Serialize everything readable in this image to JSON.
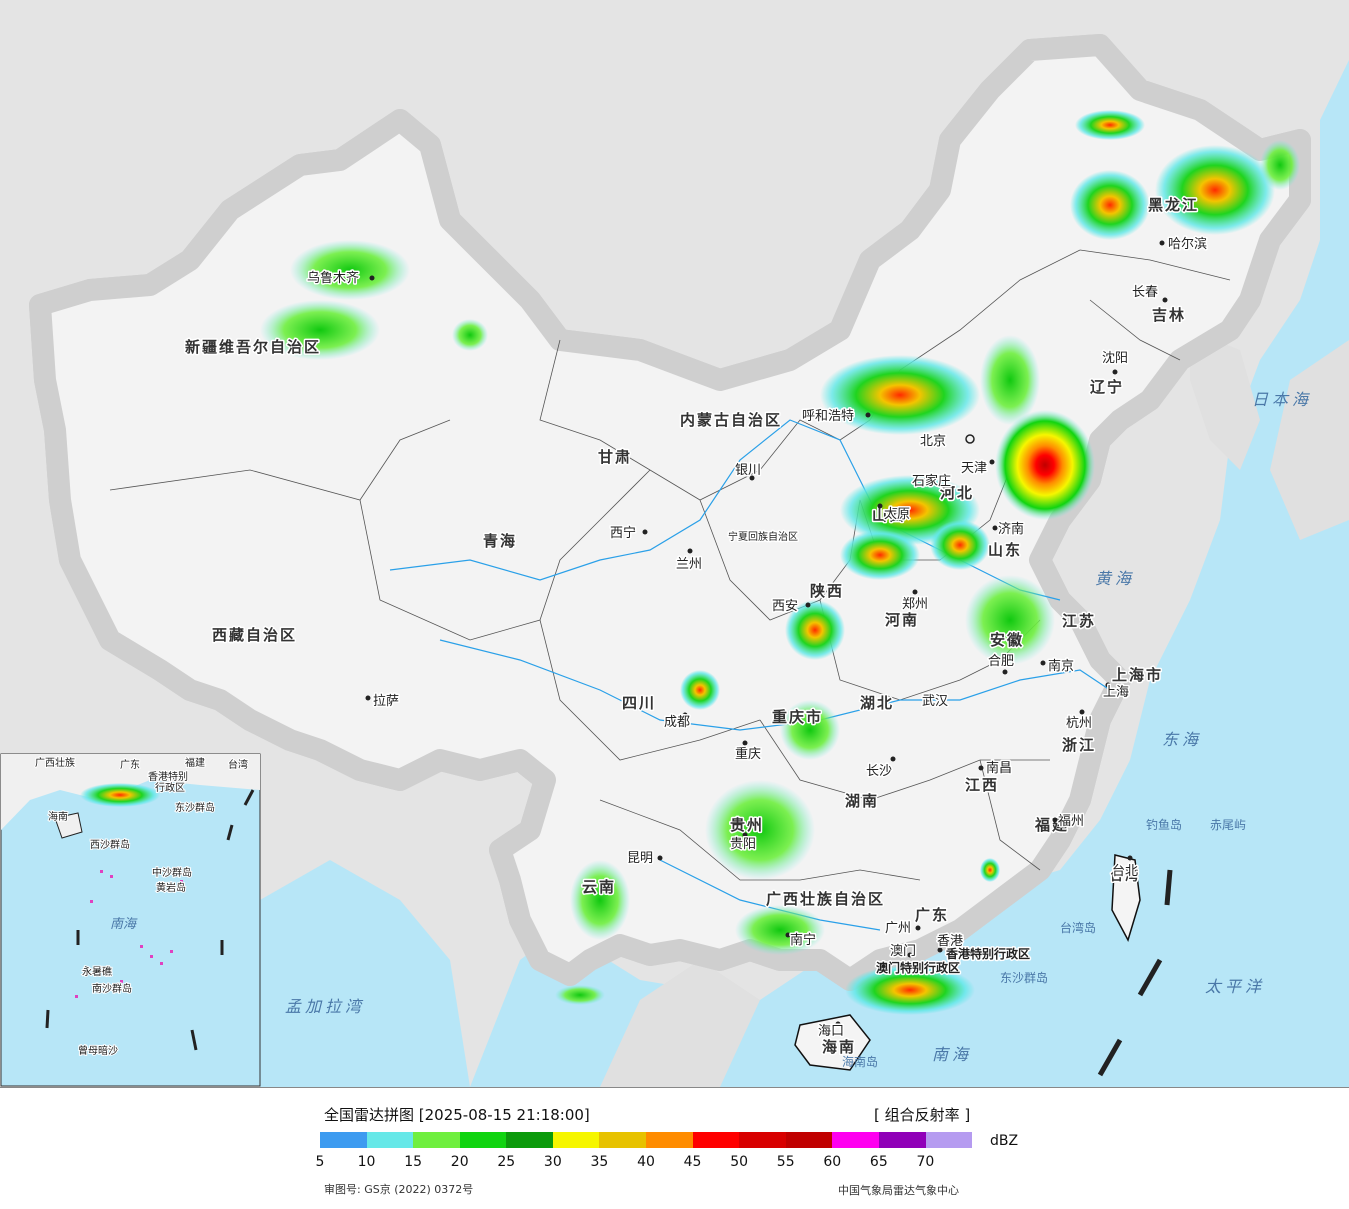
{
  "map": {
    "provinces": [
      "新疆维吾尔自治区",
      "西藏自治区",
      "青海",
      "甘肃",
      "内蒙古自治区",
      "四川",
      "云南",
      "广西壮族自治区",
      "广东",
      "湖南",
      "湖北",
      "河南",
      "河北",
      "山西",
      "陕西",
      "山东",
      "江苏",
      "安徽",
      "浙江",
      "江西",
      "福建",
      "黑龙江",
      "吉林",
      "辽宁",
      "宁夏回族自治区",
      "重庆市",
      "贵州",
      "海南",
      "上海市",
      "北京",
      "天津",
      "台湾",
      "香港特别行政区",
      "澳门特别行政区"
    ],
    "cities": [
      "乌鲁木齐",
      "拉萨",
      "西宁",
      "兰州",
      "银川",
      "呼和浩特",
      "北京",
      "天津",
      "石家庄",
      "太原",
      "济南",
      "沈阳",
      "长春",
      "哈尔滨",
      "西安",
      "郑州",
      "合肥",
      "南京",
      "上海",
      "杭州",
      "武汉",
      "长沙",
      "南昌",
      "福州",
      "台北",
      "成都",
      "重庆",
      "贵阳",
      "昆明",
      "南宁",
      "广州",
      "香港",
      "澳门",
      "海口"
    ],
    "seas": [
      "日本海",
      "黄海",
      "东海",
      "太平洋",
      "南海",
      "孟加拉湾"
    ],
    "islands": [
      "钓鱼岛",
      "赤尾屿",
      "台湾岛",
      "海南岛",
      "东沙群岛"
    ],
    "inset_labels": [
      "广西壮族",
      "广东",
      "福建",
      "台湾",
      "香港特别",
      "行政区",
      "东沙群岛",
      "海南",
      "西沙群岛",
      "中沙群岛",
      "黄岩岛",
      "南海",
      "南沙群岛",
      "永暑礁",
      "曾母暗沙"
    ]
  },
  "legend": {
    "title": "全国雷达拼图 [2025-08-15 21:18:00]",
    "product": "[ 组合反射率 ]",
    "unit": "dBZ",
    "colors": [
      "#3d9bf0",
      "#66e8e8",
      "#6fef3f",
      "#10d410",
      "#0b9a0b",
      "#f6f600",
      "#e7c200",
      "#ff8c00",
      "#ff0000",
      "#d80000",
      "#c00000",
      "#ff00f0",
      "#9000b8",
      "#b59bf0"
    ],
    "ticks": [
      "5",
      "10",
      "15",
      "20",
      "25",
      "30",
      "35",
      "40",
      "45",
      "50",
      "55",
      "60",
      "65",
      "70"
    ],
    "approval": "审图号: GS京 (2022) 0372号",
    "issuer": "中国气象局雷达气象中心"
  }
}
